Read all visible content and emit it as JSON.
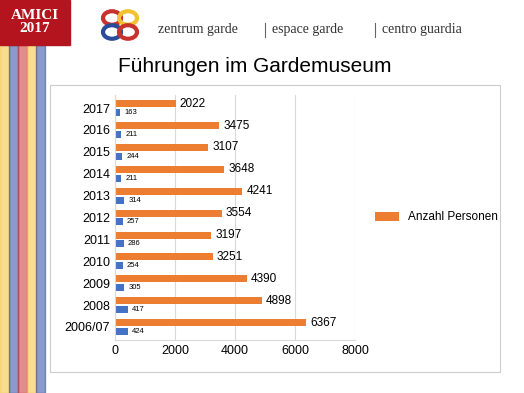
{
  "header": {
    "badge": [
      "AMICI",
      "2017"
    ],
    "text": [
      "zentrum garde",
      "espace garde",
      "centro guardia"
    ]
  },
  "chart_data": {
    "type": "bar",
    "orientation": "horizontal",
    "title": "Führungen im Gardemuseum",
    "categories": [
      "2006/07",
      "2008",
      "2009",
      "2010",
      "2011",
      "2012",
      "2013",
      "2014",
      "2015",
      "2016",
      "2017"
    ],
    "series": [
      {
        "name": "Anzahl Personen",
        "color": "#ed7d31",
        "values": [
          6367,
          4898,
          4390,
          3251,
          3197,
          3554,
          4241,
          3648,
          3107,
          3475,
          2022
        ]
      },
      {
        "color": "#4472c4",
        "values": [
          424,
          417,
          305,
          254,
          286,
          257,
          314,
          211,
          244,
          211,
          163
        ]
      }
    ],
    "xlim": [
      0,
      8000
    ],
    "xticks": [
      0,
      2000,
      4000,
      6000,
      8000
    ],
    "grid": true,
    "data_labels": true,
    "legend": "right"
  }
}
